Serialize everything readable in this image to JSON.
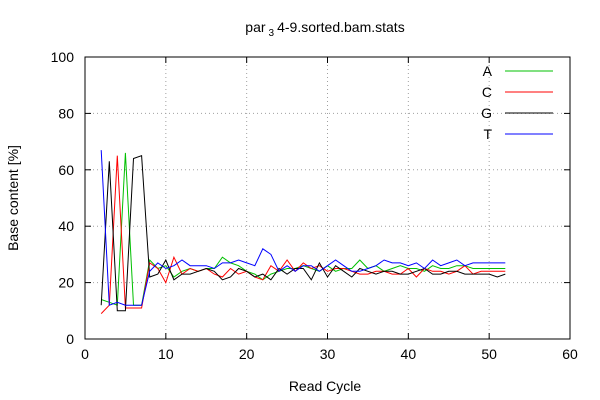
{
  "chart_data": {
    "type": "line",
    "title": "par",
    "title_subscript": "3",
    "title_suffix": "4-9.sorted.bam.stats",
    "xlabel": "Read Cycle",
    "ylabel": "Base content [%]",
    "xlim": [
      0,
      60
    ],
    "ylim": [
      0,
      100
    ],
    "xticks": [
      0,
      10,
      20,
      30,
      40,
      50,
      60
    ],
    "yticks": [
      0,
      20,
      40,
      60,
      80,
      100
    ],
    "grid": true,
    "legend_position": "top-right",
    "x": [
      2,
      3,
      4,
      5,
      6,
      7,
      8,
      9,
      10,
      11,
      12,
      13,
      14,
      15,
      16,
      17,
      18,
      19,
      20,
      21,
      22,
      23,
      24,
      25,
      26,
      27,
      28,
      29,
      30,
      31,
      32,
      33,
      34,
      35,
      36,
      37,
      38,
      39,
      40,
      41,
      42,
      43,
      44,
      45,
      46,
      47,
      48,
      49,
      50,
      51,
      52
    ],
    "series": [
      {
        "name": "A",
        "color": "#00c000",
        "values": [
          14,
          13,
          12,
          66,
          12,
          12,
          28,
          25,
          26,
          22,
          24,
          25,
          24,
          25,
          25,
          29,
          27,
          26,
          24,
          23,
          21,
          23,
          24,
          25,
          25,
          26,
          25,
          24,
          26,
          24,
          25,
          25,
          28,
          25,
          26,
          24,
          25,
          26,
          25,
          25,
          24,
          26,
          25,
          25,
          26,
          26,
          25,
          25,
          25,
          25,
          25
        ]
      },
      {
        "name": "C",
        "color": "#ff0000",
        "values": [
          9,
          12,
          65,
          11,
          11,
          11,
          27,
          25,
          20,
          29,
          23,
          25,
          24,
          25,
          23,
          22,
          25,
          23,
          24,
          22,
          21,
          26,
          24,
          28,
          24,
          27,
          25,
          26,
          24,
          25,
          25,
          24,
          23,
          23,
          24,
          24,
          23,
          23,
          25,
          22,
          25,
          24,
          24,
          23,
          24,
          26,
          23,
          24,
          24,
          24,
          24
        ]
      },
      {
        "name": "G",
        "color": "#000000",
        "values": [
          12,
          63,
          10,
          10,
          64,
          65,
          22,
          23,
          28,
          21,
          23,
          23,
          24,
          25,
          24,
          21,
          22,
          25,
          24,
          22,
          23,
          21,
          25,
          23,
          25,
          25,
          21,
          27,
          22,
          26,
          24,
          22,
          25,
          24,
          23,
          24,
          24,
          23,
          23,
          24,
          25,
          23,
          23,
          24,
          24,
          23,
          23,
          23,
          23,
          22,
          23
        ]
      },
      {
        "name": "T",
        "color": "#0000ff",
        "values": [
          67,
          12,
          13,
          12,
          12,
          12,
          24,
          27,
          25,
          26,
          28,
          26,
          26,
          26,
          25,
          27,
          27,
          28,
          27,
          26,
          32,
          30,
          24,
          26,
          24,
          26,
          26,
          24,
          26,
          28,
          26,
          24,
          24,
          25,
          26,
          28,
          27,
          27,
          26,
          27,
          25,
          28,
          26,
          27,
          28,
          26,
          27,
          27,
          27,
          27,
          27
        ]
      }
    ]
  }
}
